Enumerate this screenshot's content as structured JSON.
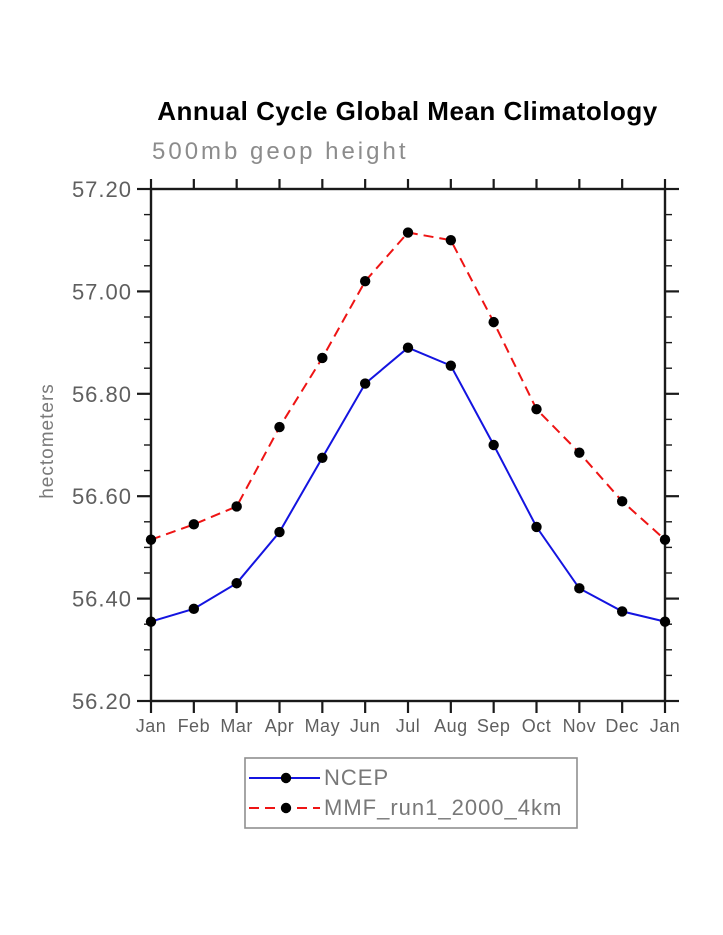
{
  "header": {
    "title": "Annual Cycle Global Mean Climatology",
    "subtitle": "500mb geop height"
  },
  "y_axis": {
    "label": "hectometers"
  },
  "chart_data": {
    "type": "line",
    "title": "Annual Cycle Global Mean Climatology",
    "subtitle": "500mb geop height",
    "xlabel": "",
    "ylabel": "hectometers",
    "categories": [
      "Jan",
      "Feb",
      "Mar",
      "Apr",
      "May",
      "Jun",
      "Jul",
      "Aug",
      "Sep",
      "Oct",
      "Nov",
      "Dec",
      "Jan"
    ],
    "series": [
      {
        "name": "NCEP",
        "line_style": "solid",
        "color": "#1414e0",
        "marker": "filled-black-circle",
        "values": [
          56.355,
          56.38,
          56.43,
          56.53,
          56.675,
          56.82,
          56.89,
          56.855,
          56.7,
          56.54,
          56.42,
          56.375,
          56.355
        ]
      },
      {
        "name": "MMF_run1_2000_4km",
        "line_style": "dashed",
        "color": "#ee1414",
        "marker": "filled-black-circle",
        "values": [
          56.515,
          56.545,
          56.58,
          56.735,
          56.87,
          57.02,
          57.115,
          57.1,
          56.94,
          56.77,
          56.685,
          56.59,
          56.515
        ]
      }
    ],
    "ylim": [
      56.2,
      57.2
    ],
    "yticks": [
      56.2,
      56.4,
      56.6,
      56.8,
      57.0,
      57.2
    ],
    "ytick_labels": [
      "56.20",
      "56.40",
      "56.60",
      "56.80",
      "57.00",
      "57.20"
    ],
    "y_minor_interval": 0.05,
    "grid": false,
    "frame": "box-with-outward-ticks",
    "legend_position": "below-bottom-center",
    "marker_color": "#000000",
    "axis_color": "#1a1a1a",
    "label_color": "#5f5f5f"
  },
  "legend": {
    "entries": [
      {
        "label": "NCEP"
      },
      {
        "label": "MMF_run1_2000_4km"
      }
    ]
  }
}
